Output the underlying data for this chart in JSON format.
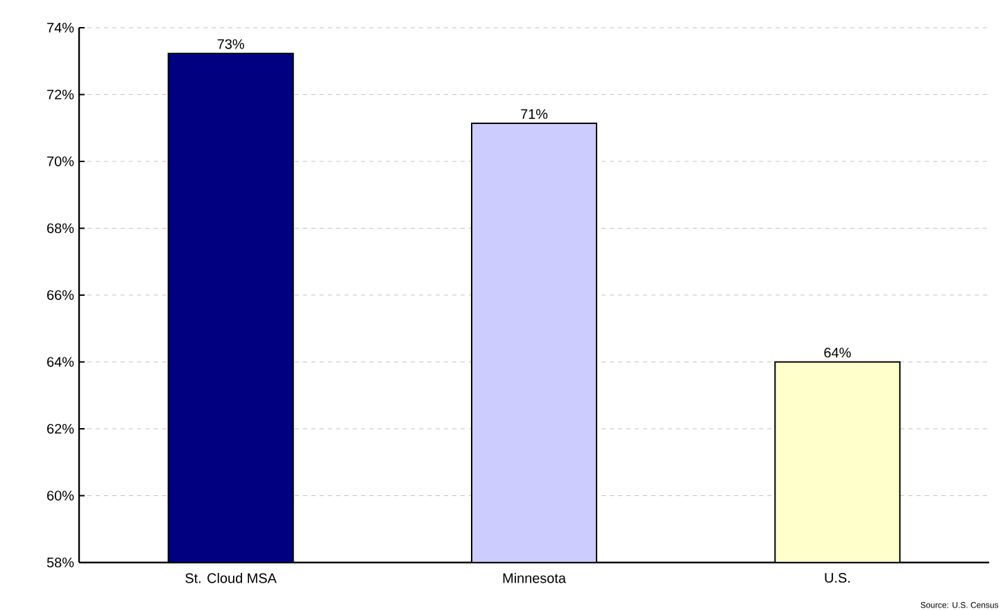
{
  "chart_data": {
    "type": "bar",
    "categories": [
      "St. Cloud MSA",
      "Minnesota",
      "U.S."
    ],
    "values": [
      73.23,
      71.14,
      64.0
    ],
    "value_labels": [
      "73%",
      "71%",
      "64%"
    ],
    "colors": [
      "#000080",
      "#ccccff",
      "#ffffcc"
    ],
    "ylim": [
      58,
      74
    ],
    "yticks": [
      {
        "value": 58,
        "label": "58%"
      },
      {
        "value": 60,
        "label": "60%"
      },
      {
        "value": 62,
        "label": "62%"
      },
      {
        "value": 64,
        "label": "64%"
      },
      {
        "value": 66,
        "label": "66%"
      },
      {
        "value": 68,
        "label": "68%"
      },
      {
        "value": 70,
        "label": "70%"
      },
      {
        "value": 72,
        "label": "72%"
      },
      {
        "value": 74,
        "label": "74%"
      }
    ],
    "grid": "y",
    "annotations": [
      "Source: U.S. Census"
    ]
  }
}
